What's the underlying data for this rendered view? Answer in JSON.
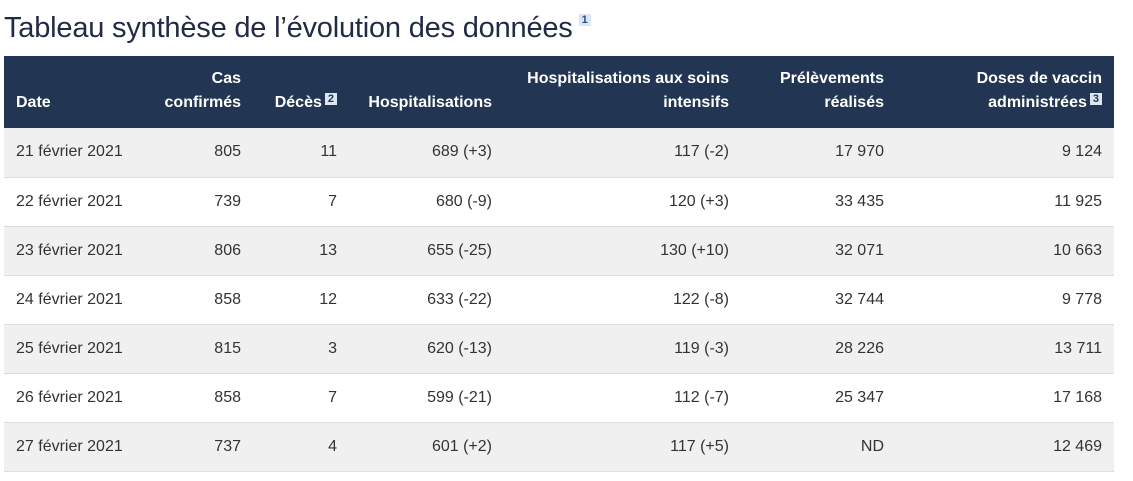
{
  "title": "Tableau synthèse de l’évolution des données",
  "title_footnote": "1",
  "headers": {
    "date": "Date",
    "cas_line1": "Cas",
    "cas_line2": "confirmés",
    "deces": "Décès",
    "deces_footnote": "2",
    "hosp": "Hospitalisations",
    "hosp_si_line1": "Hospitalisations aux soins",
    "hosp_si_line2": "intensifs",
    "prel_line1": "Prélèvements",
    "prel_line2": "réalisés",
    "doses_line1": "Doses de vaccin",
    "doses_line2": "administrées",
    "doses_footnote": "3"
  },
  "rows": [
    {
      "date": "21 février 2021",
      "cas": "805",
      "deces": "11",
      "hosp": "689 (+3)",
      "hosp_si": "117 (-2)",
      "prel": "17 970",
      "doses": "9 124"
    },
    {
      "date": "22 février 2021",
      "cas": "739",
      "deces": "7",
      "hosp": "680 (-9)",
      "hosp_si": "120 (+3)",
      "prel": "33 435",
      "doses": "11 925"
    },
    {
      "date": "23 février 2021",
      "cas": "806",
      "deces": "13",
      "hosp": "655 (-25)",
      "hosp_si": "130 (+10)",
      "prel": "32 071",
      "doses": "10 663"
    },
    {
      "date": "24 février 2021",
      "cas": "858",
      "deces": "12",
      "hosp": "633 (-22)",
      "hosp_si": "122 (-8)",
      "prel": "32 744",
      "doses": "9 778"
    },
    {
      "date": "25 février 2021",
      "cas": "815",
      "deces": "3",
      "hosp": "620 (-13)",
      "hosp_si": "119 (-3)",
      "prel": "28 226",
      "doses": "13 711"
    },
    {
      "date": "26 février 2021",
      "cas": "858",
      "deces": "7",
      "hosp": "599 (-21)",
      "hosp_si": "112 (-7)",
      "prel": "25 347",
      "doses": "17 168"
    },
    {
      "date": "27 février 2021",
      "cas": "737",
      "deces": "4",
      "hosp": "601 (+2)",
      "hosp_si": "117 (+5)",
      "prel": "ND",
      "doses": "12 469"
    }
  ],
  "colors": {
    "header_bg": "#223654",
    "title": "#222b45",
    "row_alt": "#f0f0f0",
    "footnote_bg": "#dce6f2"
  }
}
